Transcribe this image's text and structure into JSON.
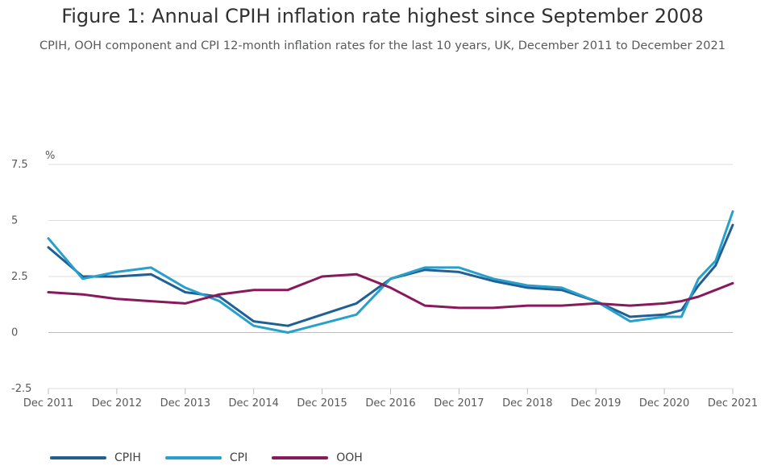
{
  "header": {
    "title": "Figure 1: Annual CPIH inflation rate highest since September 2008",
    "subtitle": "CPIH, OOH component and CPI 12-month inflation rates for the last 10 years, UK, December 2011 to December 2021"
  },
  "chart_data": {
    "type": "line",
    "ylabel": "%",
    "ylim": [
      -2.5,
      7.5
    ],
    "yticks": [
      -2.5,
      0,
      2.5,
      5,
      7.5
    ],
    "ytick_labels": [
      "-2.5",
      "0",
      "2.5",
      "5",
      "7.5"
    ],
    "xlim": [
      "Dec 2011",
      "Dec 2021"
    ],
    "xtick_labels": [
      "Dec 2011",
      "Dec 2012",
      "Dec 2013",
      "Dec 2014",
      "Dec 2015",
      "Dec 2016",
      "Dec 2017",
      "Dec 2018",
      "Dec 2019",
      "Dec 2020",
      "Dec 2021"
    ],
    "grid": "horizontal",
    "legend_position": "bottom-left",
    "x": [
      "2011-12",
      "2012-06",
      "2012-12",
      "2013-06",
      "2013-12",
      "2014-06",
      "2014-12",
      "2015-06",
      "2015-12",
      "2016-06",
      "2016-12",
      "2017-06",
      "2017-12",
      "2018-06",
      "2018-12",
      "2019-06",
      "2019-12",
      "2020-06",
      "2020-12",
      "2021-03",
      "2021-06",
      "2021-09",
      "2021-12"
    ],
    "series": [
      {
        "name": "CPIH",
        "color": "#206095",
        "values": [
          3.8,
          2.5,
          2.5,
          2.6,
          1.8,
          1.6,
          0.5,
          0.3,
          0.8,
          1.3,
          2.4,
          2.8,
          2.7,
          2.3,
          2.0,
          1.9,
          1.4,
          0.7,
          0.8,
          1.0,
          2.1,
          3.0,
          4.8
        ]
      },
      {
        "name": "CPI",
        "color": "#27a0cc",
        "values": [
          4.2,
          2.4,
          2.7,
          2.9,
          2.0,
          1.4,
          0.3,
          0.0,
          0.4,
          0.8,
          2.4,
          2.9,
          2.9,
          2.4,
          2.1,
          2.0,
          1.4,
          0.5,
          0.7,
          0.7,
          2.4,
          3.2,
          5.4
        ]
      },
      {
        "name": "OOH",
        "color": "#871a5b",
        "values": [
          1.8,
          1.7,
          1.5,
          1.4,
          1.3,
          1.7,
          1.9,
          1.9,
          2.5,
          2.6,
          2.0,
          1.2,
          1.1,
          1.1,
          1.2,
          1.2,
          1.3,
          1.2,
          1.3,
          1.4,
          1.6,
          1.9,
          2.2
        ]
      }
    ]
  },
  "legend": {
    "items": [
      {
        "label": "CPIH",
        "color": "#206095"
      },
      {
        "label": "CPI",
        "color": "#27a0cc"
      },
      {
        "label": "OOH",
        "color": "#871a5b"
      }
    ]
  }
}
